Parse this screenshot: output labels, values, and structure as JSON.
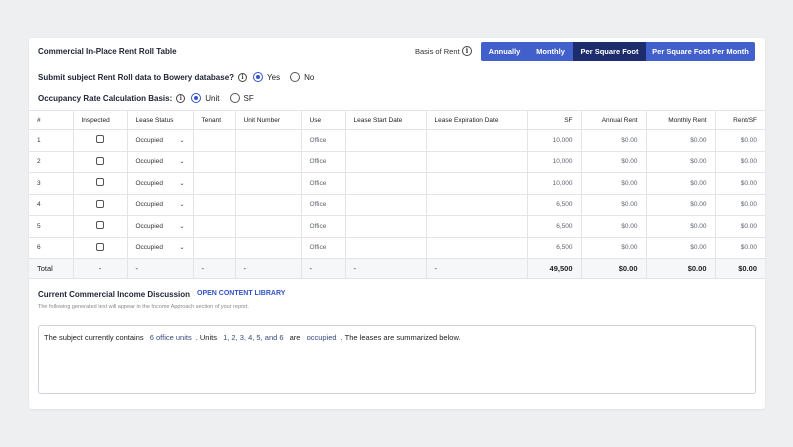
{
  "table_title": "Commercial In-Place Rent Roll Table",
  "basis": {
    "label": "Basis of Rent",
    "options": [
      "Annually",
      "Monthly",
      "Per Square Foot",
      "Per Square Foot Per Month"
    ],
    "selected": "Per Square Foot"
  },
  "submit_question": {
    "label": "Submit subject Rent Roll data to Bowery database?",
    "yes": "Yes",
    "no": "No",
    "selected": "Yes"
  },
  "occupancy_basis": {
    "label": "Occupancy Rate Calculation Basis:",
    "unit": "Unit",
    "sf": "SF",
    "selected": "Unit"
  },
  "columns": [
    "#",
    "Inspected",
    "Lease Status",
    "Tenant",
    "Unit Number",
    "Use",
    "Lease Start Date",
    "Lease Expiration Date",
    "SF",
    "Annual Rent",
    "Monthly Rent",
    "Rent/SF"
  ],
  "rows": [
    {
      "n": "1",
      "status": "Occupied",
      "tenant": "",
      "unit": "",
      "use": "Office",
      "start": "",
      "exp": "",
      "sf": "10,000",
      "annual": "$0.00",
      "monthly": "$0.00",
      "rentsf": "$0.00"
    },
    {
      "n": "2",
      "status": "Occupied",
      "tenant": "",
      "unit": "",
      "use": "Office",
      "start": "",
      "exp": "",
      "sf": "10,000",
      "annual": "$0.00",
      "monthly": "$0.00",
      "rentsf": "$0.00"
    },
    {
      "n": "3",
      "status": "Occupied",
      "tenant": "",
      "unit": "",
      "use": "Office",
      "start": "",
      "exp": "",
      "sf": "10,000",
      "annual": "$0.00",
      "monthly": "$0.00",
      "rentsf": "$0.00"
    },
    {
      "n": "4",
      "status": "Occupied",
      "tenant": "",
      "unit": "",
      "use": "Office",
      "start": "",
      "exp": "",
      "sf": "6,500",
      "annual": "$0.00",
      "monthly": "$0.00",
      "rentsf": "$0.00"
    },
    {
      "n": "5",
      "status": "Occupied",
      "tenant": "",
      "unit": "",
      "use": "Office",
      "start": "",
      "exp": "",
      "sf": "6,500",
      "annual": "$0.00",
      "monthly": "$0.00",
      "rentsf": "$0.00"
    },
    {
      "n": "6",
      "status": "Occupied",
      "tenant": "",
      "unit": "",
      "use": "Office",
      "start": "",
      "exp": "",
      "sf": "6,500",
      "annual": "$0.00",
      "monthly": "$0.00",
      "rentsf": "$0.00"
    }
  ],
  "total": {
    "label": "Total",
    "dash": "-",
    "sf": "49,500",
    "annual": "$0.00",
    "monthly": "$0.00",
    "rentsf": "$0.00"
  },
  "discussion": {
    "title": "Current Commercial Income Discussion",
    "library_link": "OPEN CONTENT LIBRARY",
    "subtitle": "The following generated text will appear in the Income Approach section of your report.",
    "text_1": "The subject currently contains",
    "chip_units": "6 office units",
    "text_2": ". Units",
    "chip_list": "1, 2, 3, 4, 5, and 6",
    "text_3": "are",
    "chip_status": "occupied",
    "text_4": ". The leases are summarized below."
  },
  "colors": {
    "accent": "#4260cc",
    "accent_active": "#1d2c6c",
    "link": "#3354c7"
  },
  "icons": {
    "info": "info-circle-icon",
    "dropdown": "chevron-down-icon"
  }
}
